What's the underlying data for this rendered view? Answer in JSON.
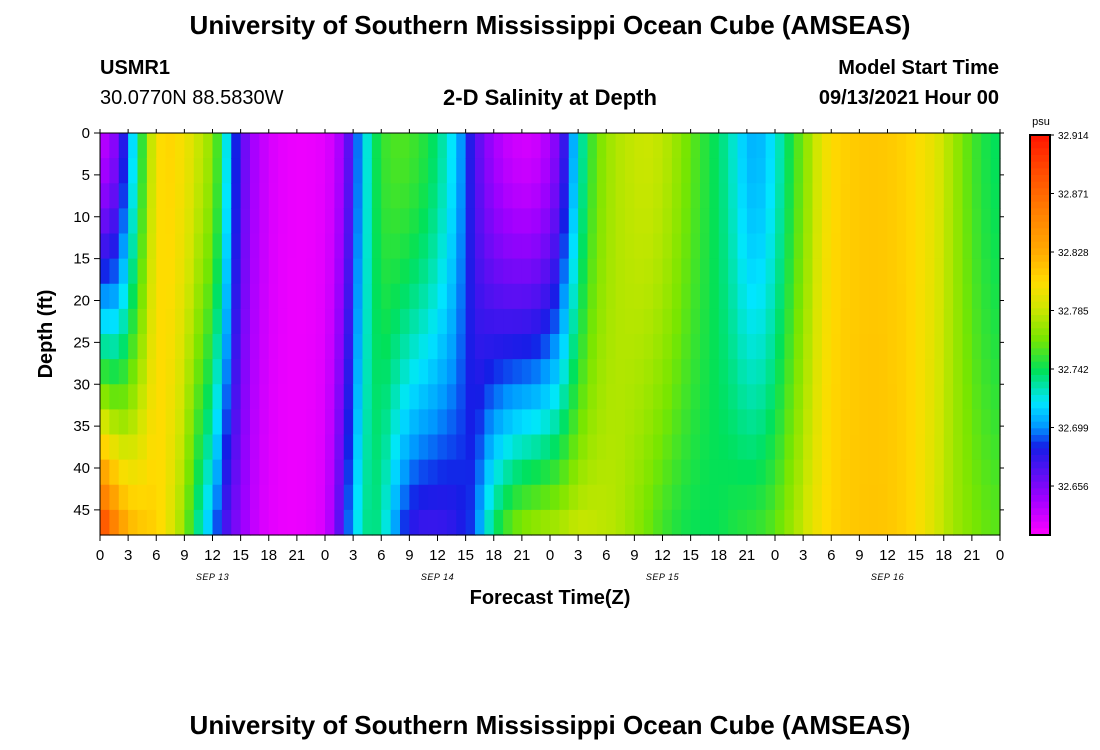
{
  "title": "University of Southern Mississippi Ocean Cube (AMSEAS)",
  "footer_title": "University of Southern Mississippi Ocean Cube (AMSEAS)",
  "station": {
    "id": "USMR1",
    "coordinates": "30.0770N  88.5830W"
  },
  "model_start": {
    "label": "Model Start Time",
    "value": "09/13/2021 Hour 00"
  },
  "chart_data": {
    "type": "heatmap",
    "title": "2-D Salinity at Depth",
    "xlabel": "Forecast Time(Z)",
    "ylabel": "Depth (ft)",
    "x_ticks": [
      "0",
      "3",
      "6",
      "9",
      "12",
      "15",
      "18",
      "21",
      "0",
      "3",
      "6",
      "9",
      "12",
      "15",
      "18",
      "21",
      "0",
      "3",
      "6",
      "9",
      "12",
      "15",
      "18",
      "21",
      "0",
      "3",
      "6",
      "9",
      "12",
      "15",
      "18",
      "21",
      "0"
    ],
    "date_labels": [
      "SEP 13",
      "SEP 14",
      "SEP 15",
      "SEP 16"
    ],
    "y_ticks": [
      "0",
      "5",
      "10",
      "15",
      "20",
      "25",
      "30",
      "35",
      "40",
      "45"
    ],
    "ylim": [
      48,
      0
    ],
    "xlim_hours": [
      0,
      96
    ],
    "colorbar": {
      "unit": "psu",
      "labels": [
        "32.914",
        "32.871",
        "32.828",
        "32.785",
        "32.742",
        "32.699",
        "32.656"
      ],
      "range": [
        32.62,
        32.914
      ]
    },
    "time_profile_surface": [
      [
        0,
        32.636
      ],
      [
        1,
        32.645
      ],
      [
        2,
        32.66
      ],
      [
        3,
        32.7
      ],
      [
        4,
        32.73
      ],
      [
        5,
        32.77
      ],
      [
        6,
        32.8
      ],
      [
        7,
        32.81
      ],
      [
        8,
        32.805
      ],
      [
        9,
        32.8
      ],
      [
        10,
        32.79
      ],
      [
        11,
        32.78
      ],
      [
        12,
        32.77
      ],
      [
        13,
        32.74
      ],
      [
        14,
        32.7
      ],
      [
        15,
        32.67
      ],
      [
        16,
        32.648
      ],
      [
        17,
        32.64
      ],
      [
        18,
        32.632
      ],
      [
        19,
        32.628
      ],
      [
        20,
        32.626
      ],
      [
        21,
        32.625
      ],
      [
        22,
        32.625
      ],
      [
        23,
        32.626
      ],
      [
        24,
        32.628
      ],
      [
        25,
        32.635
      ],
      [
        26,
        32.65
      ],
      [
        27,
        32.68
      ],
      [
        28,
        32.71
      ],
      [
        29,
        32.735
      ],
      [
        30,
        32.75
      ],
      [
        31,
        32.755
      ],
      [
        32,
        32.756
      ],
      [
        33,
        32.755
      ],
      [
        34,
        32.75
      ],
      [
        35,
        32.745
      ],
      [
        36,
        32.735
      ],
      [
        37,
        32.725
      ],
      [
        38,
        32.71
      ],
      [
        39,
        32.69
      ],
      [
        40,
        32.67
      ],
      [
        41,
        32.655
      ],
      [
        42,
        32.645
      ],
      [
        43,
        32.638
      ],
      [
        44,
        32.634
      ],
      [
        45,
        32.632
      ],
      [
        46,
        32.632
      ],
      [
        47,
        32.636
      ],
      [
        48,
        32.645
      ],
      [
        49,
        32.66
      ],
      [
        50,
        32.69
      ],
      [
        51,
        32.72
      ],
      [
        52,
        32.745
      ],
      [
        53,
        32.762
      ],
      [
        54,
        32.772
      ],
      [
        55,
        32.778
      ],
      [
        56,
        32.782
      ],
      [
        57,
        32.784
      ],
      [
        58,
        32.786
      ],
      [
        59,
        32.785
      ],
      [
        60,
        32.782
      ],
      [
        61,
        32.776
      ],
      [
        62,
        32.768
      ],
      [
        63,
        32.76
      ],
      [
        64,
        32.752
      ],
      [
        65,
        32.745
      ],
      [
        66,
        32.738
      ],
      [
        67,
        32.73
      ],
      [
        68,
        32.718
      ],
      [
        69,
        32.708
      ],
      [
        70,
        32.705
      ],
      [
        71,
        32.71
      ],
      [
        72,
        32.72
      ],
      [
        73,
        32.735
      ],
      [
        74,
        32.75
      ],
      [
        75,
        32.765
      ],
      [
        76,
        32.78
      ],
      [
        77,
        32.795
      ],
      [
        78,
        32.805
      ],
      [
        79,
        32.81
      ],
      [
        80,
        32.812
      ],
      [
        81,
        32.814
      ],
      [
        82,
        32.815
      ],
      [
        83,
        32.815
      ],
      [
        84,
        32.814
      ],
      [
        85,
        32.812
      ],
      [
        86,
        32.81
      ],
      [
        87,
        32.805
      ],
      [
        88,
        32.8
      ],
      [
        89,
        32.795
      ],
      [
        90,
        32.785
      ],
      [
        91,
        32.775
      ],
      [
        92,
        32.765
      ],
      [
        93,
        32.755
      ],
      [
        94,
        32.748
      ],
      [
        95,
        32.742
      ],
      [
        96,
        32.74
      ]
    ],
    "time_profile_bottom": [
      [
        0,
        32.9
      ],
      [
        1,
        32.88
      ],
      [
        2,
        32.85
      ],
      [
        3,
        32.83
      ],
      [
        4,
        32.82
      ],
      [
        5,
        32.815
      ],
      [
        6,
        32.81
      ],
      [
        7,
        32.8
      ],
      [
        8,
        32.785
      ],
      [
        9,
        32.77
      ],
      [
        10,
        32.74
      ],
      [
        11,
        32.72
      ],
      [
        12,
        32.7
      ],
      [
        13,
        32.675
      ],
      [
        14,
        32.66
      ],
      [
        15,
        32.65
      ],
      [
        16,
        32.64
      ],
      [
        17,
        32.632
      ],
      [
        18,
        32.628
      ],
      [
        19,
        32.626
      ],
      [
        20,
        32.625
      ],
      [
        21,
        32.625
      ],
      [
        22,
        32.626
      ],
      [
        23,
        32.628
      ],
      [
        24,
        32.632
      ],
      [
        25,
        32.65
      ],
      [
        26,
        32.68
      ],
      [
        27,
        32.71
      ],
      [
        28,
        32.73
      ],
      [
        29,
        32.738
      ],
      [
        30,
        32.73
      ],
      [
        31,
        32.71
      ],
      [
        32,
        32.69
      ],
      [
        33,
        32.678
      ],
      [
        34,
        32.672
      ],
      [
        35,
        32.672
      ],
      [
        36,
        32.672
      ],
      [
        37,
        32.674
      ],
      [
        38,
        32.678
      ],
      [
        39,
        32.685
      ],
      [
        40,
        32.69
      ],
      [
        41,
        32.72
      ],
      [
        42,
        32.74
      ],
      [
        43,
        32.755
      ],
      [
        44,
        32.765
      ],
      [
        45,
        32.772
      ],
      [
        46,
        32.775
      ],
      [
        47,
        32.778
      ],
      [
        48,
        32.78
      ],
      [
        49,
        32.782
      ],
      [
        50,
        32.785
      ],
      [
        51,
        32.787
      ],
      [
        52,
        32.786
      ],
      [
        53,
        32.784
      ],
      [
        54,
        32.782
      ],
      [
        55,
        32.78
      ],
      [
        56,
        32.775
      ],
      [
        57,
        32.77
      ],
      [
        58,
        32.764
      ],
      [
        59,
        32.758
      ],
      [
        60,
        32.752
      ],
      [
        61,
        32.748
      ],
      [
        62,
        32.744
      ],
      [
        63,
        32.742
      ],
      [
        64,
        32.741
      ],
      [
        65,
        32.741
      ],
      [
        66,
        32.742
      ],
      [
        67,
        32.745
      ],
      [
        68,
        32.748
      ],
      [
        69,
        32.75
      ],
      [
        70,
        32.752
      ],
      [
        71,
        32.755
      ],
      [
        72,
        32.76
      ],
      [
        73,
        32.768
      ],
      [
        74,
        32.776
      ],
      [
        75,
        32.785
      ],
      [
        76,
        32.795
      ],
      [
        77,
        32.803
      ],
      [
        78,
        32.808
      ],
      [
        79,
        32.812
      ],
      [
        80,
        32.814
      ],
      [
        81,
        32.815
      ],
      [
        82,
        32.816
      ],
      [
        83,
        32.816
      ],
      [
        84,
        32.815
      ],
      [
        85,
        32.813
      ],
      [
        86,
        32.81
      ],
      [
        87,
        32.805
      ],
      [
        88,
        32.798
      ],
      [
        89,
        32.79
      ],
      [
        90,
        32.782
      ],
      [
        91,
        32.775
      ],
      [
        92,
        32.77
      ],
      [
        93,
        32.766
      ],
      [
        94,
        32.762
      ],
      [
        95,
        32.76
      ],
      [
        96,
        32.758
      ]
    ]
  },
  "colors": {
    "accent": "#ff0000"
  }
}
